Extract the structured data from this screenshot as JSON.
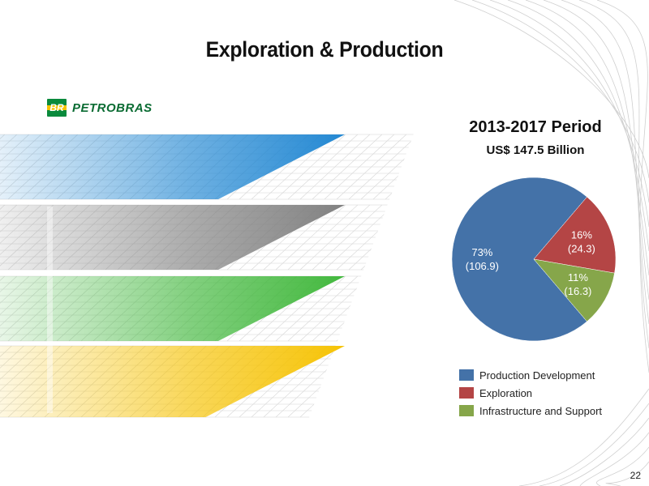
{
  "slide": {
    "title": "Exploration & Production",
    "page_number": "22"
  },
  "logo": {
    "mark_text": "BR",
    "company_text": "PETROBRAS"
  },
  "colors": {
    "production_development": "#4472a8",
    "exploration": "#b44545",
    "infrastructure_support": "#86a64a",
    "layer_blue": "#1f86d2",
    "layer_gray": "#7f7f7f",
    "layer_green": "#3fb73a",
    "layer_yellow": "#f6c200",
    "logo_green": "#0a8a3c",
    "logo_yellow": "#f5c400"
  },
  "chart_data": {
    "type": "pie",
    "title": "2013-2017 Period",
    "subtitle": "US$ 147.5 Billion",
    "slices": [
      {
        "name": "Production Development",
        "value": 106.9,
        "percent_label": "73%",
        "value_label": "(106.9)"
      },
      {
        "name": "Exploration",
        "value": 24.3,
        "percent_label": "16%",
        "value_label": "(24.3)"
      },
      {
        "name": "Infrastructure and Support",
        "value": 16.3,
        "percent_label": "11%",
        "value_label": "(16.3)"
      }
    ],
    "legend_position": "bottom"
  }
}
